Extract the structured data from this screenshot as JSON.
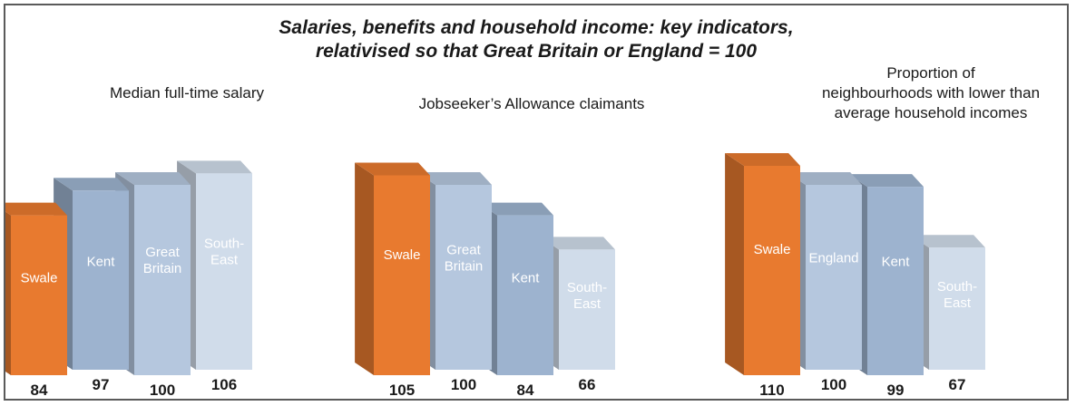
{
  "title_lines": [
    "Salaries, benefits and household income: key indicators,",
    "relativised so that Great Britain or England = 100"
  ],
  "colors": {
    "swale": "#e87a2f",
    "dark_blue": "#9db3cf",
    "mid_blue": "#b5c7de",
    "light_blue": "#d0dcea",
    "background": "#ffffff"
  },
  "chart_data": [
    {
      "type": "bar",
      "title_lines": [
        "Median full-time salary"
      ],
      "categories": [
        "Swale",
        "Kent",
        "Great Britain",
        "South-East"
      ],
      "values": [
        84,
        97,
        100,
        106
      ],
      "ylim": [
        0,
        110
      ],
      "legend": "none",
      "grid": false
    },
    {
      "type": "bar",
      "title_lines": [
        "Jobseeker’s Allowance claimants"
      ],
      "categories": [
        "Swale",
        "Great Britain",
        "Kent",
        "South-East"
      ],
      "values": [
        105,
        100,
        84,
        66
      ],
      "ylim": [
        0,
        110
      ],
      "legend": "none",
      "grid": false
    },
    {
      "type": "bar",
      "title_lines": [
        "Proportion of",
        "neighbourhoods with lower than",
        "average household incomes"
      ],
      "categories": [
        "Swale",
        "England",
        "Kent",
        "South-East"
      ],
      "values": [
        110,
        100,
        99,
        67
      ],
      "ylim": [
        0,
        110
      ],
      "legend": "none",
      "grid": false
    }
  ]
}
